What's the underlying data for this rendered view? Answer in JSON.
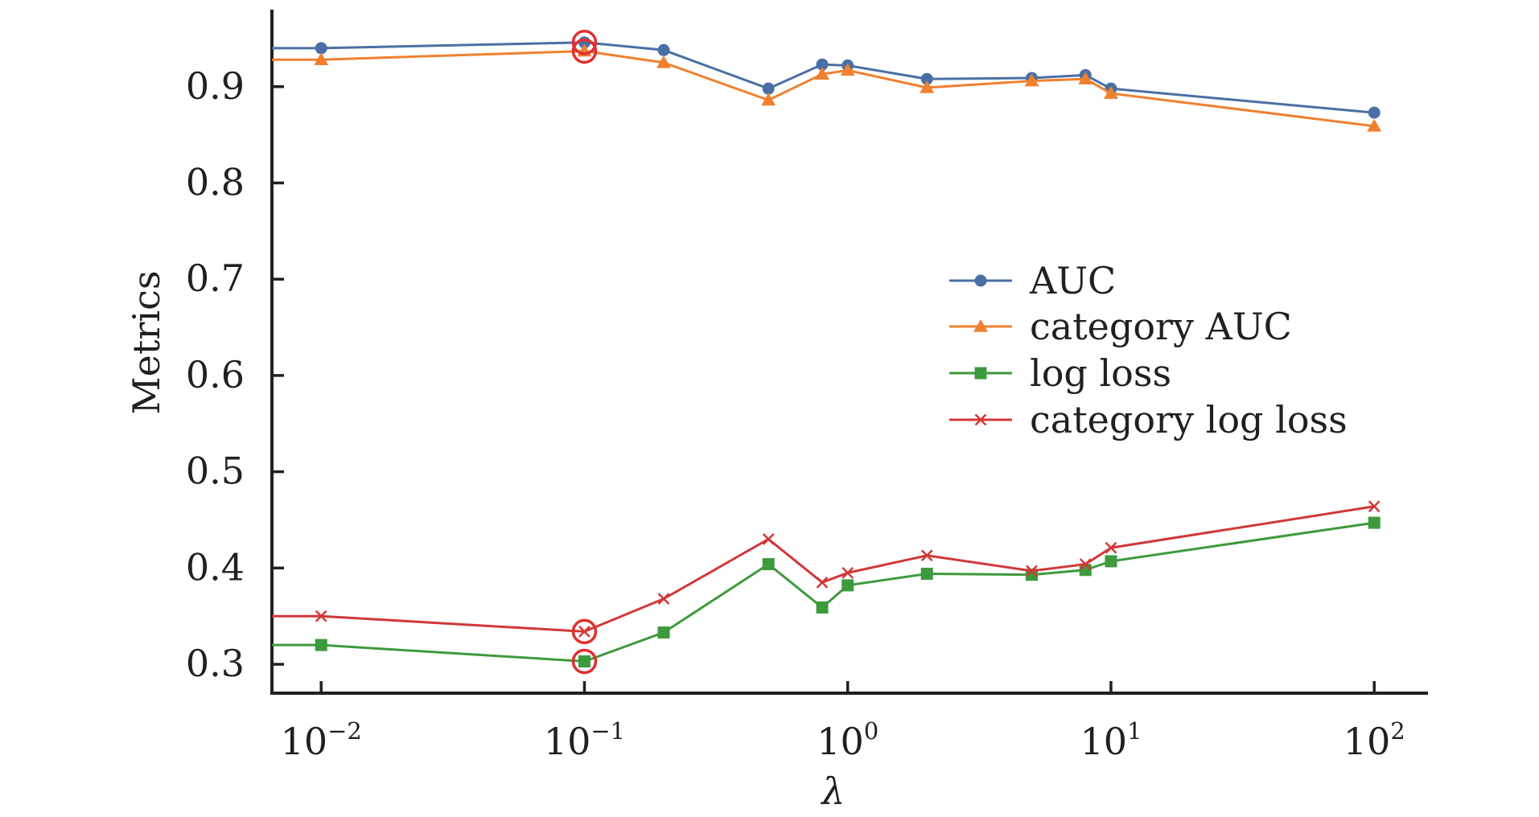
{
  "chart_data": {
    "type": "line",
    "title": "",
    "xlabel": "λ",
    "ylabel": "Metrics",
    "xscale": "log",
    "xlim": [
      0.0065,
      160
    ],
    "ylim": [
      0.27,
      0.98
    ],
    "grid": false,
    "legend_position": "right",
    "x": [
      0.01,
      0.1,
      0.2,
      0.5,
      0.8,
      1,
      2,
      5,
      8,
      10,
      100
    ],
    "x_ticks": [
      {
        "value": 0.01,
        "base": "10",
        "exp": "−2"
      },
      {
        "value": 0.1,
        "base": "10",
        "exp": "−1"
      },
      {
        "value": 1,
        "base": "10",
        "exp": "0"
      },
      {
        "value": 10,
        "base": "10",
        "exp": "1"
      },
      {
        "value": 100,
        "base": "10",
        "exp": "2"
      }
    ],
    "y_ticks": [
      "0.3",
      "0.4",
      "0.5",
      "0.6",
      "0.7",
      "0.8",
      "0.9"
    ],
    "series": [
      {
        "name": "AUC",
        "color": "#4a6fa5",
        "marker": "circle",
        "values": [
          0.94,
          0.946,
          0.938,
          0.898,
          0.923,
          0.922,
          0.908,
          0.909,
          0.912,
          0.898,
          0.873
        ]
      },
      {
        "name": "category AUC",
        "color": "#f08030",
        "marker": "triangle",
        "values": [
          0.928,
          0.937,
          0.925,
          0.886,
          0.913,
          0.917,
          0.899,
          0.906,
          0.908,
          0.893,
          0.859
        ]
      },
      {
        "name": "log loss",
        "color": "#3d9a3d",
        "marker": "square",
        "values": [
          0.32,
          0.303,
          0.333,
          0.404,
          0.359,
          0.382,
          0.394,
          0.393,
          0.398,
          0.407,
          0.447
        ]
      },
      {
        "name": "category log loss",
        "color": "#d03838",
        "marker": "x",
        "values": [
          0.35,
          0.334,
          0.368,
          0.43,
          0.385,
          0.395,
          0.413,
          0.397,
          0.404,
          0.421,
          0.464
        ]
      }
    ],
    "annotations": [
      {
        "type": "circle-highlight",
        "color": "#e03030",
        "x": 0.1,
        "y": 0.946
      },
      {
        "type": "circle-highlight",
        "color": "#e03030",
        "x": 0.1,
        "y": 0.937
      },
      {
        "type": "circle-highlight",
        "color": "#e03030",
        "x": 0.1,
        "y": 0.334
      },
      {
        "type": "circle-highlight",
        "color": "#e03030",
        "x": 0.1,
        "y": 0.303
      }
    ]
  }
}
